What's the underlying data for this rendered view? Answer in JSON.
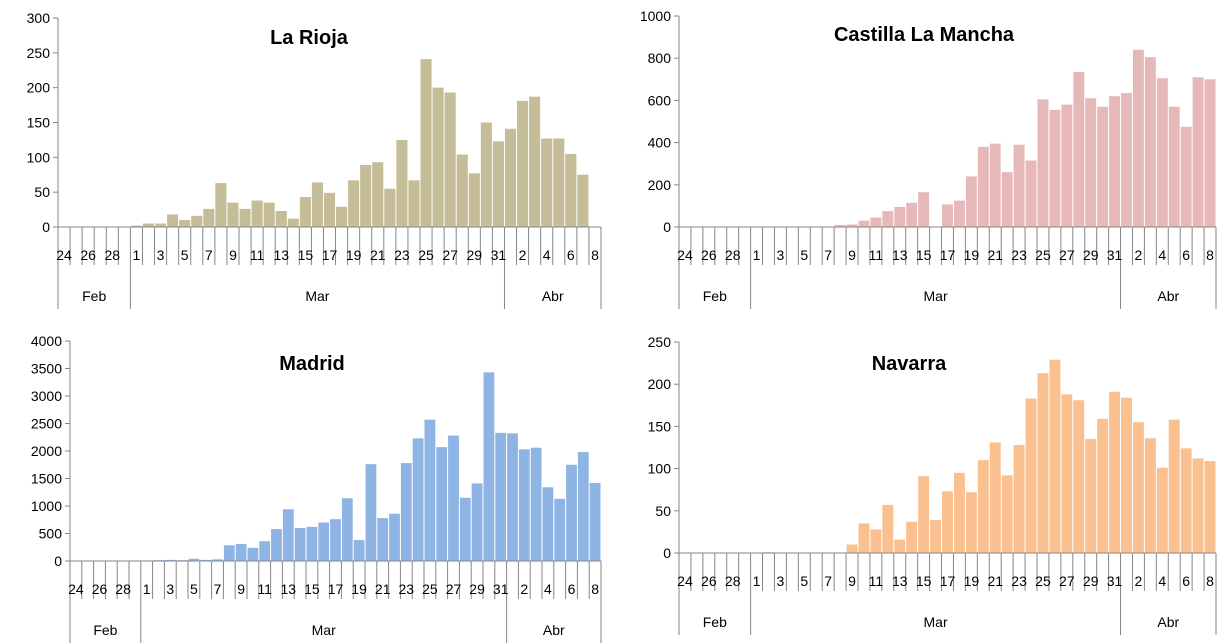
{
  "charts": [
    {
      "title": "La Rioja",
      "color": "#c4bd97"
    },
    {
      "title": "Castilla La Mancha",
      "color": "#e6b9b8"
    },
    {
      "title": "Madrid",
      "color": "#8db4e3"
    },
    {
      "title": "Navarra",
      "color": "#fac090"
    }
  ],
  "chart_data": [
    {
      "type": "bar",
      "title": "La Rioja",
      "ylim": [
        0,
        300
      ],
      "yticks": [
        0,
        50,
        100,
        150,
        200,
        250,
        300
      ],
      "categories": [
        "24",
        "25",
        "26",
        "27",
        "28",
        "29",
        "1",
        "2",
        "3",
        "4",
        "5",
        "6",
        "7",
        "8",
        "9",
        "10",
        "11",
        "12",
        "13",
        "14",
        "15",
        "16",
        "17",
        "18",
        "19",
        "20",
        "21",
        "22",
        "23",
        "24",
        "25",
        "26",
        "27",
        "28",
        "29",
        "30",
        "31",
        "1",
        "2",
        "3",
        "4",
        "5",
        "6",
        "7",
        "8"
      ],
      "tick_labels": [
        "24",
        "",
        "26",
        "",
        "28",
        "",
        "1",
        "",
        "3",
        "",
        "5",
        "",
        "7",
        "",
        "9",
        "",
        "11",
        "",
        "13",
        "",
        "15",
        "",
        "17",
        "",
        "19",
        "",
        "21",
        "",
        "23",
        "",
        "25",
        "",
        "27",
        "",
        "29",
        "",
        "31",
        "",
        "2",
        "",
        "4",
        "",
        "6",
        "",
        "8"
      ],
      "groups": [
        {
          "label": "Feb",
          "count": 6
        },
        {
          "label": "Mar",
          "count": 31
        },
        {
          "label": "Abr",
          "count": 8
        }
      ],
      "values": [
        0,
        0,
        0,
        0,
        0,
        0,
        2,
        5,
        5,
        18,
        10,
        16,
        26,
        63,
        35,
        26,
        38,
        35,
        23,
        12,
        43,
        64,
        49,
        29,
        67,
        89,
        93,
        55,
        125,
        67,
        241,
        200,
        193,
        104,
        77,
        150,
        123,
        141,
        181,
        187,
        127,
        127,
        105,
        75,
        0
      ],
      "grid": false
    },
    {
      "type": "bar",
      "title": "Castilla La Mancha",
      "ylim": [
        0,
        1000
      ],
      "yticks": [
        0,
        200,
        400,
        600,
        800,
        1000
      ],
      "categories": [
        "24",
        "25",
        "26",
        "27",
        "28",
        "29",
        "1",
        "2",
        "3",
        "4",
        "5",
        "6",
        "7",
        "8",
        "9",
        "10",
        "11",
        "12",
        "13",
        "14",
        "15",
        "16",
        "17",
        "18",
        "19",
        "20",
        "21",
        "22",
        "23",
        "24",
        "25",
        "26",
        "27",
        "28",
        "29",
        "30",
        "31",
        "1",
        "2",
        "3",
        "4",
        "5",
        "6",
        "7",
        "8"
      ],
      "tick_labels": [
        "24",
        "",
        "26",
        "",
        "28",
        "",
        "1",
        "",
        "3",
        "",
        "5",
        "",
        "7",
        "",
        "9",
        "",
        "11",
        "",
        "13",
        "",
        "15",
        "",
        "17",
        "",
        "19",
        "",
        "21",
        "",
        "23",
        "",
        "25",
        "",
        "27",
        "",
        "29",
        "",
        "31",
        "",
        "2",
        "",
        "4",
        "",
        "6",
        "",
        "8"
      ],
      "groups": [
        {
          "label": "Feb",
          "count": 6
        },
        {
          "label": "Mar",
          "count": 31
        },
        {
          "label": "Abr",
          "count": 8
        }
      ],
      "values": [
        0,
        0,
        0,
        0,
        0,
        0,
        0,
        2,
        2,
        0,
        0,
        0,
        0,
        10,
        12,
        30,
        45,
        75,
        95,
        115,
        165,
        0,
        107,
        125,
        240,
        380,
        395,
        260,
        390,
        315,
        605,
        555,
        580,
        735,
        610,
        570,
        620,
        635,
        840,
        805,
        705,
        570,
        475,
        710,
        700
      ],
      "grid": false
    },
    {
      "type": "bar",
      "title": "Madrid",
      "ylim": [
        0,
        4000
      ],
      "yticks": [
        0,
        500,
        1000,
        1500,
        2000,
        2500,
        3000,
        3500,
        4000
      ],
      "categories": [
        "24",
        "25",
        "26",
        "27",
        "28",
        "29",
        "1",
        "2",
        "3",
        "4",
        "5",
        "6",
        "7",
        "8",
        "9",
        "10",
        "11",
        "12",
        "13",
        "14",
        "15",
        "16",
        "17",
        "18",
        "19",
        "20",
        "21",
        "22",
        "23",
        "24",
        "25",
        "26",
        "27",
        "28",
        "29",
        "30",
        "31",
        "1",
        "2",
        "3",
        "4",
        "5",
        "6",
        "7",
        "8"
      ],
      "tick_labels": [
        "24",
        "",
        "26",
        "",
        "28",
        "",
        "1",
        "",
        "3",
        "",
        "5",
        "",
        "7",
        "",
        "9",
        "",
        "11",
        "",
        "13",
        "",
        "15",
        "",
        "17",
        "",
        "19",
        "",
        "21",
        "",
        "23",
        "",
        "25",
        "",
        "27",
        "",
        "29",
        "",
        "31",
        "",
        "2",
        "",
        "4",
        "",
        "6",
        "",
        "8"
      ],
      "groups": [
        {
          "label": "Feb",
          "count": 6
        },
        {
          "label": "Mar",
          "count": 31
        },
        {
          "label": "Abr",
          "count": 8
        }
      ],
      "values": [
        0,
        0,
        0,
        0,
        0,
        0,
        10,
        15,
        20,
        15,
        40,
        20,
        30,
        285,
        310,
        240,
        360,
        580,
        940,
        600,
        620,
        700,
        760,
        1140,
        380,
        1760,
        780,
        860,
        1780,
        2230,
        2570,
        2070,
        2280,
        1150,
        1410,
        3430,
        2330,
        2320,
        2030,
        2060,
        1340,
        1130,
        1750,
        1980,
        1420
      ],
      "grid": false
    },
    {
      "type": "bar",
      "title": "Navarra",
      "ylim": [
        0,
        250
      ],
      "yticks": [
        0,
        50,
        100,
        150,
        200,
        250
      ],
      "categories": [
        "24",
        "25",
        "26",
        "27",
        "28",
        "29",
        "1",
        "2",
        "3",
        "4",
        "5",
        "6",
        "7",
        "8",
        "9",
        "10",
        "11",
        "12",
        "13",
        "14",
        "15",
        "16",
        "17",
        "18",
        "19",
        "20",
        "21",
        "22",
        "23",
        "24",
        "25",
        "26",
        "27",
        "28",
        "29",
        "30",
        "31",
        "1",
        "2",
        "3",
        "4",
        "5",
        "6",
        "7",
        "8"
      ],
      "tick_labels": [
        "24",
        "",
        "26",
        "",
        "28",
        "",
        "1",
        "",
        "3",
        "",
        "5",
        "",
        "7",
        "",
        "9",
        "",
        "11",
        "",
        "13",
        "",
        "15",
        "",
        "17",
        "",
        "19",
        "",
        "21",
        "",
        "23",
        "",
        "25",
        "",
        "27",
        "",
        "29",
        "",
        "31",
        "",
        "2",
        "",
        "4",
        "",
        "6",
        "",
        "8"
      ],
      "groups": [
        {
          "label": "Feb",
          "count": 6
        },
        {
          "label": "Mar",
          "count": 31
        },
        {
          "label": "Abr",
          "count": 8
        }
      ],
      "values": [
        0,
        0,
        0,
        0,
        0,
        0,
        0,
        1,
        0,
        0,
        0,
        0,
        0,
        0,
        10,
        35,
        28,
        57,
        16,
        37,
        91,
        39,
        73,
        95,
        72,
        110,
        131,
        92,
        128,
        183,
        213,
        229,
        188,
        181,
        135,
        159,
        191,
        184,
        155,
        136,
        101,
        158,
        124,
        112,
        109
      ],
      "grid": false
    }
  ]
}
